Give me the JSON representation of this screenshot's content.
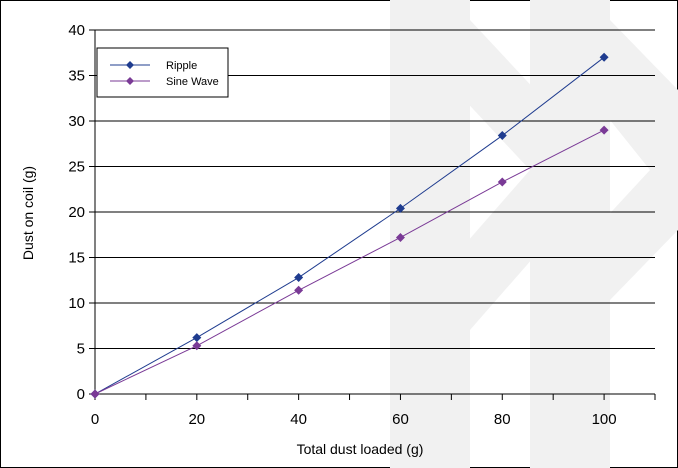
{
  "chart_data": {
    "type": "line",
    "title": "",
    "xlabel": "Total dust loaded (g)",
    "ylabel": "Dust on coil (g)",
    "xlim": [
      0,
      110
    ],
    "ylim": [
      0,
      40
    ],
    "xticks": [
      0,
      20,
      40,
      60,
      80,
      100
    ],
    "yticks": [
      0,
      5,
      10,
      15,
      20,
      25,
      30,
      35,
      40
    ],
    "grid": "horizontal",
    "legend_position": "top-left",
    "series": [
      {
        "name": "Ripple",
        "color": "#1f3c8f",
        "marker": "diamond",
        "x": [
          0,
          20,
          40,
          60,
          80,
          100
        ],
        "y": [
          0,
          6.2,
          12.8,
          20.4,
          28.4,
          37.0
        ]
      },
      {
        "name": "Sine Wave",
        "color": "#7a3a96",
        "marker": "diamond",
        "x": [
          0,
          20,
          40,
          60,
          80,
          100
        ],
        "y": [
          0,
          5.3,
          11.4,
          17.2,
          23.3,
          29.0
        ]
      }
    ]
  }
}
